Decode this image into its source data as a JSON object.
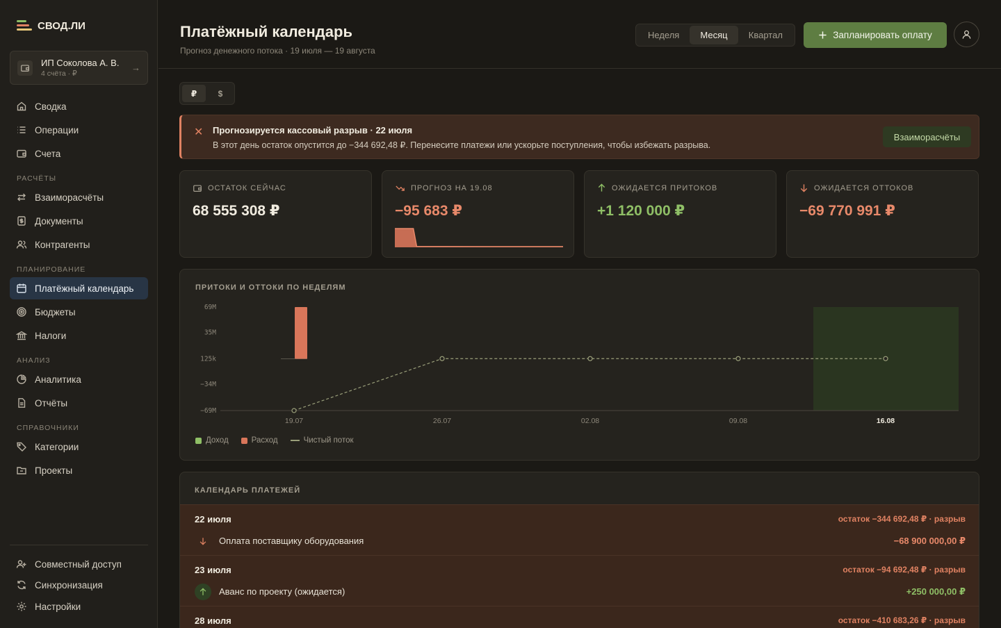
{
  "brand": {
    "name": "СВОД.ЛИ"
  },
  "org": {
    "name": "ИП Соколова А. В.",
    "sub": "4 счёта · ₽"
  },
  "nav": {
    "main": [
      {
        "label": "Сводка",
        "icon": "home-icon"
      },
      {
        "label": "Операции",
        "icon": "list-icon"
      },
      {
        "label": "Счета",
        "icon": "wallet-icon"
      }
    ],
    "sections": [
      {
        "title": "РАСЧЁТЫ",
        "items": [
          {
            "label": "Взаиморасчёты",
            "icon": "swap-icon"
          },
          {
            "label": "Документы",
            "icon": "document-icon"
          },
          {
            "label": "Контрагенты",
            "icon": "users-icon"
          }
        ]
      },
      {
        "title": "ПЛАНИРОВАНИЕ",
        "items": [
          {
            "label": "Платёжный календарь",
            "icon": "calendar-icon",
            "active": true
          },
          {
            "label": "Бюджеты",
            "icon": "target-icon"
          },
          {
            "label": "Налоги",
            "icon": "bank-icon"
          }
        ]
      },
      {
        "title": "АНАЛИЗ",
        "items": [
          {
            "label": "Аналитика",
            "icon": "pie-icon"
          },
          {
            "label": "Отчёты",
            "icon": "report-icon"
          }
        ]
      },
      {
        "title": "СПРАВОЧНИКИ",
        "items": [
          {
            "label": "Категории",
            "icon": "tag-icon"
          },
          {
            "label": "Проекты",
            "icon": "folder-icon"
          }
        ]
      }
    ],
    "bottom": [
      {
        "label": "Совместный доступ",
        "icon": "share-icon"
      },
      {
        "label": "Синхронизация",
        "icon": "sync-icon"
      },
      {
        "label": "Настройки",
        "icon": "gear-icon"
      }
    ]
  },
  "header": {
    "title": "Платёжный календарь",
    "subtitle": "Прогноз денежного потока · 19 июля — 19 августа",
    "periods": [
      "Неделя",
      "Месяц",
      "Квартал"
    ],
    "active_period": "Месяц",
    "plan_button": "Запланировать оплату"
  },
  "currency": {
    "options": [
      "₽",
      "$"
    ],
    "active": "₽"
  },
  "alert": {
    "title": "Прогнозируется кассовый разрыв · 22 июля",
    "text": "В этот день остаток опустится до −344 692,48 ₽. Перенесите платежи или ускорьте поступления, чтобы избежать разрыва.",
    "button": "Взаиморасчёты"
  },
  "kpis": [
    {
      "label": "ОСТАТОК СЕЙЧАС",
      "value": "68 555 308 ₽",
      "icon": "wallet-icon",
      "color": "#f1ece0"
    },
    {
      "label": "ПРОГНОЗ НА 19.08",
      "value": "−95 683 ₽",
      "icon": "trend-down-icon",
      "color": "#e8896a",
      "sparkline": [
        68.5,
        68.5,
        0.2,
        0.2,
        -0.1,
        -0.1,
        -0.1
      ]
    },
    {
      "label": "ОЖИДАЕТСЯ ПРИТОКОВ",
      "value": "+1 120 000 ₽",
      "icon": "arrow-up-icon",
      "color": "#8fbf66"
    },
    {
      "label": "ОЖИДАЕТСЯ ОТТОКОВ",
      "value": "−69 770 991 ₽",
      "icon": "arrow-down-icon",
      "color": "#e8896a"
    }
  ],
  "chart_panel": {
    "title": "ПРИТОКИ И ОТТОКИ ПО НЕДЕЛЯМ"
  },
  "chart_data": {
    "type": "bar",
    "categories": [
      "19.07",
      "26.07",
      "02.08",
      "09.08",
      "16.08"
    ],
    "highlight_category": "16.08",
    "yticks": [
      "69M",
      "35M",
      "125k",
      "−34M",
      "−69M"
    ],
    "ylim": [
      -69,
      69
    ],
    "unit": "M",
    "series": [
      {
        "name": "Доход",
        "kind": "bar",
        "color": "#8fbf66",
        "values": [
          0,
          0,
          0,
          0,
          0
        ]
      },
      {
        "name": "Расход",
        "kind": "bar",
        "color": "#d9765a",
        "values": [
          69,
          0,
          0,
          0,
          0
        ]
      },
      {
        "name": "Чистый поток",
        "kind": "line",
        "color": "#9a9f7a",
        "values": [
          -69,
          0.25,
          0.25,
          0.25,
          0.25
        ]
      }
    ],
    "legend_position": "bottom-left",
    "grid": false
  },
  "calendar": {
    "title": "КАЛЕНДАРЬ ПЛАТЕЖЕЙ",
    "days": [
      {
        "date": "22 июля",
        "balance": "остаток −344 692,48 ₽ · разрыв",
        "payment": {
          "name": "Оплата поставщику оборудования",
          "amount": "−68 900 000,00 ₽",
          "direction": "out"
        }
      },
      {
        "date": "23 июля",
        "balance": "остаток −94 692,48 ₽ · разрыв",
        "payment": {
          "name": "Аванс по проекту (ожидается)",
          "amount": "+250 000,00 ₽",
          "direction": "in"
        }
      },
      {
        "date": "28 июля",
        "balance": "остаток −410 683,26 ₽ · разрыв"
      }
    ]
  },
  "colors": {
    "accent": "#5e7d42",
    "danger": "#e08262",
    "positive": "#8fbf66",
    "active_nav": "#283545"
  }
}
